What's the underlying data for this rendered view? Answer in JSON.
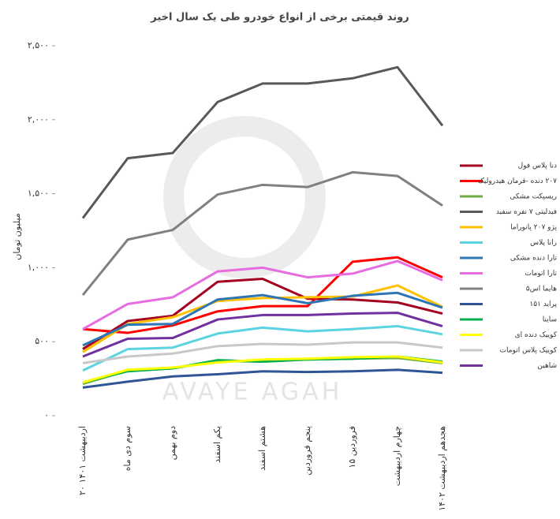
{
  "chart_data": {
    "type": "line",
    "title": "روند قیمتی برخی از انواع خودرو طی یک سال اخیر",
    "y_label": "میلیون تومان",
    "watermark": "AVAYE AGAH",
    "categories": [
      "۲۰ اردیبهشت ۱۴۰۱",
      "سوم دی ماه",
      "دوم بهمن",
      "یکم اسفند",
      "هشتم اسفند",
      "پنجم فروردین",
      "۱۵ فروردین",
      "چهارم اردیبهشت",
      "هجدهم اردیبهشت ۱۴۰۲"
    ],
    "ylim": [
      0,
      2500
    ],
    "yticks": [
      {
        "value": 0,
        "label": "۰"
      },
      {
        "value": 500,
        "label": "۵۰۰"
      },
      {
        "value": 1000,
        "label": "۱,۰۰۰"
      },
      {
        "value": 1500,
        "label": "۱,۵۰۰"
      },
      {
        "value": 2000,
        "label": "۲,۰۰۰"
      },
      {
        "value": 2500,
        "label": "۲,۵۰۰"
      }
    ],
    "legend": "right",
    "series": [
      {
        "name": "دنا پلاس فول",
        "color": "#a50021",
        "values": [
          450,
          640,
          675,
          905,
          925,
          790,
          785,
          765,
          690
        ]
      },
      {
        "name": "۲۰۷ دنده -فرمان هیدرولیک",
        "color": "#ff0000",
        "values": [
          585,
          560,
          610,
          705,
          740,
          740,
          1040,
          1070,
          935
        ]
      },
      {
        "name": "ریسپکت مشکی",
        "color": "#70ad47",
        "values": [
          215,
          305,
          320,
          370,
          365,
          380,
          385,
          390,
          355
        ]
      },
      {
        "name": "فیدلیتی ۷ نفره سفید",
        "color": "#595959",
        "values": [
          1335,
          1740,
          1775,
          2120,
          2245,
          2245,
          2280,
          2355,
          1960
        ]
      },
      {
        "name": "پژو ۲۰۷ پانوراما",
        "color": "#ffc000",
        "values": [
          430,
          620,
          665,
          775,
          795,
          800,
          805,
          880,
          735
        ]
      },
      {
        "name": "رانا پلاس",
        "color": "#5bd3e0",
        "values": [
          305,
          450,
          460,
          555,
          595,
          570,
          585,
          605,
          550
        ]
      },
      {
        "name": "تارا دنده مشکی",
        "color": "#2e75b6",
        "values": [
          475,
          615,
          620,
          785,
          815,
          760,
          810,
          830,
          730
        ]
      },
      {
        "name": "تارا اتومات",
        "color": "#e66ce0",
        "values": [
          585,
          755,
          800,
          975,
          1000,
          935,
          960,
          1045,
          915
        ]
      },
      {
        "name": "هایما اس۵",
        "color": "#808080",
        "values": [
          815,
          1190,
          1255,
          1495,
          1560,
          1545,
          1645,
          1620,
          1420
        ]
      },
      {
        "name": "پراید ۱۵۱",
        "color": "#2f5597",
        "values": [
          190,
          230,
          265,
          280,
          300,
          295,
          300,
          310,
          290
        ]
      },
      {
        "name": "ساینا",
        "color": "#00b050",
        "values": [
          225,
          300,
          320,
          375,
          365,
          380,
          385,
          400,
          365
        ]
      },
      {
        "name": "کوییک دنده ای",
        "color": "#ffff00",
        "values": [
          225,
          310,
          325,
          360,
          380,
          385,
          395,
          400,
          360
        ]
      },
      {
        "name": "کوییک پلاس اتومات",
        "color": "#c8c8c8",
        "values": [
          355,
          400,
          420,
          470,
          485,
          480,
          495,
          495,
          460
        ]
      },
      {
        "name": "شاهین",
        "color": "#7030a0",
        "values": [
          400,
          520,
          525,
          650,
          680,
          680,
          690,
          695,
          605
        ]
      }
    ]
  }
}
